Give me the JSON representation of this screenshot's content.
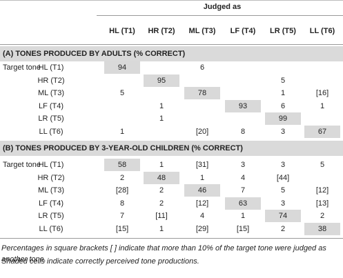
{
  "header": {
    "title": "Judged as",
    "columns": [
      "HL (T1)",
      "HR (T2)",
      "ML (T3)",
      "LF (T4)",
      "LR (T5)",
      "LL (T6)"
    ]
  },
  "sections": [
    {
      "title": "(A) TONES PRODUCED BY ADULTS (% CORRECT)",
      "row_group_label": "Target tone",
      "rows": [
        {
          "tone": "HL (T1)",
          "shaded": 0,
          "cells": [
            "94",
            null,
            "6",
            null,
            null,
            null
          ]
        },
        {
          "tone": "HR (T2)",
          "shaded": 1,
          "cells": [
            null,
            "95",
            null,
            null,
            "5",
            null
          ]
        },
        {
          "tone": "ML (T3)",
          "shaded": 2,
          "cells": [
            "5",
            null,
            "78",
            null,
            "1",
            "[16]"
          ]
        },
        {
          "tone": "LF (T4)",
          "shaded": 3,
          "cells": [
            null,
            "1",
            null,
            "93",
            "6",
            "1"
          ]
        },
        {
          "tone": "LR (T5)",
          "shaded": 4,
          "cells": [
            null,
            "1",
            null,
            null,
            "99",
            null
          ]
        },
        {
          "tone": "LL (T6)",
          "shaded": 5,
          "cells": [
            "1",
            null,
            "[20]",
            "8",
            "3",
            "67"
          ]
        }
      ]
    },
    {
      "title": "(B) TONES PRODUCED BY 3-YEAR-OLD CHILDREN (% CORRECT)",
      "row_group_label": "Target tone",
      "rows": [
        {
          "tone": "HL (T1)",
          "shaded": 0,
          "cells": [
            "58",
            "1",
            "[31]",
            "3",
            "3",
            "5"
          ]
        },
        {
          "tone": "HR (T2)",
          "shaded": 1,
          "cells": [
            "2",
            "48",
            "1",
            "4",
            "[44]",
            null
          ]
        },
        {
          "tone": "ML (T3)",
          "shaded": 2,
          "cells": [
            "[28]",
            "2",
            "46",
            "7",
            "5",
            "[12]"
          ]
        },
        {
          "tone": "LF (T4)",
          "shaded": 3,
          "cells": [
            "8",
            "2",
            "[12]",
            "63",
            "3",
            "[13]"
          ]
        },
        {
          "tone": "LR (T5)",
          "shaded": 4,
          "cells": [
            "7",
            "[11]",
            "4",
            "1",
            "74",
            "2"
          ]
        },
        {
          "tone": "LL (T6)",
          "shaded": 5,
          "cells": [
            "[15]",
            "1",
            "[29]",
            "[15]",
            "2",
            "38"
          ]
        }
      ]
    }
  ],
  "footnotes": [
    "Percentages in square brackets [ ] indicate that more than 10% of the target tone were judged as another tone.",
    "Shaded cells indicate correctly perceived tone productions."
  ]
}
